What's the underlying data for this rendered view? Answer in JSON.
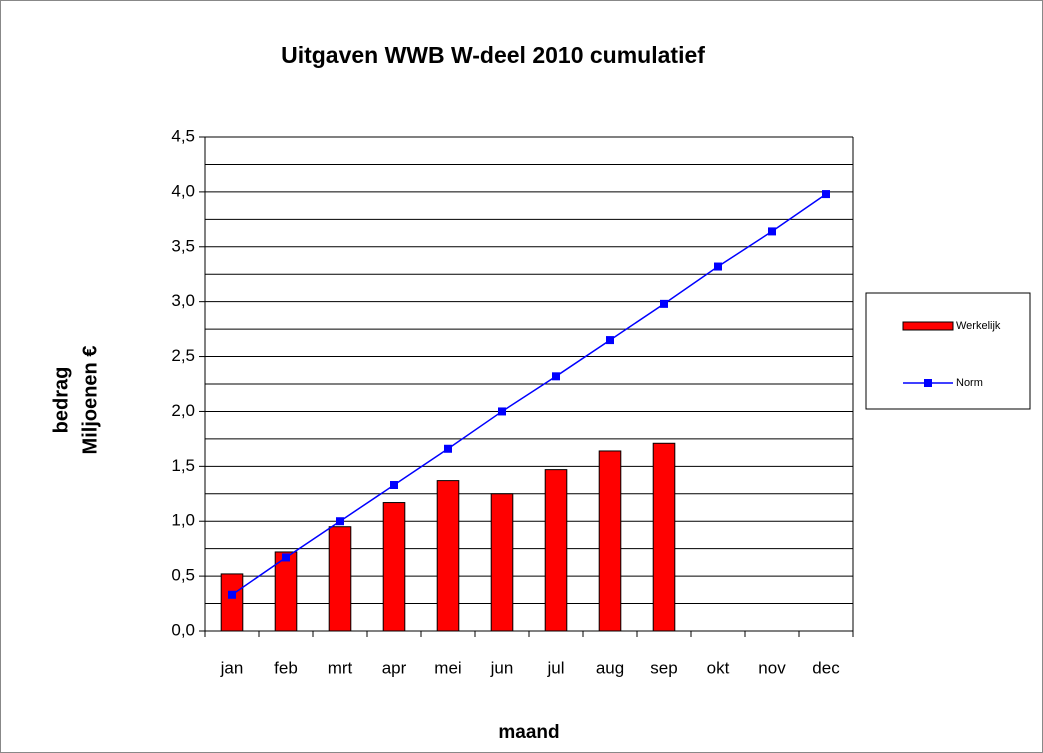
{
  "chart_data": {
    "type": "bar_line",
    "title": "Uitgaven WWB W-deel 2010 cumulatief",
    "x_label": "maand",
    "y_label": [
      "bedrag",
      "Miljoenen €"
    ],
    "categories": [
      "jan",
      "feb",
      "mrt",
      "apr",
      "mei",
      "jun",
      "jul",
      "aug",
      "sep",
      "okt",
      "nov",
      "dec"
    ],
    "series": [
      {
        "name": "Werkelijk",
        "type": "bar",
        "color": "#ff0000",
        "values": [
          0.52,
          0.72,
          0.95,
          1.17,
          1.37,
          1.25,
          1.47,
          1.64,
          1.71,
          null,
          null,
          null
        ]
      },
      {
        "name": "Norm",
        "type": "line",
        "color": "#0000ff",
        "values": [
          0.33,
          0.67,
          1.0,
          1.33,
          1.66,
          2.0,
          2.32,
          2.65,
          2.98,
          3.32,
          3.64,
          3.98
        ]
      }
    ],
    "ylim": [
      0,
      4.5
    ],
    "yticks": [
      {
        "value": 0,
        "label": "0,0"
      },
      {
        "value": 0.5,
        "label": "0,5"
      },
      {
        "value": 1,
        "label": "1,0"
      },
      {
        "value": 1.5,
        "label": "1,5"
      },
      {
        "value": 2,
        "label": "2,0"
      },
      {
        "value": 2.5,
        "label": "2,5"
      },
      {
        "value": 3,
        "label": "3,0"
      },
      {
        "value": 3.5,
        "label": "3,5"
      },
      {
        "value": 4,
        "label": "4,0"
      },
      {
        "value": 4.5,
        "label": "4,5"
      }
    ],
    "minor_yticks": [
      0.25,
      0.75,
      1.25,
      1.75,
      2.25,
      2.75,
      3.25,
      3.75,
      4.25
    ],
    "grid": true,
    "legend": "right"
  }
}
